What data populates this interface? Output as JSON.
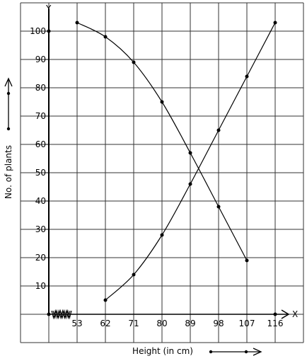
{
  "chart_data": {
    "type": "line",
    "title": "",
    "xlabel": "Height (in cm)",
    "ylabel": "No. of plants",
    "x_axis_letter": "X",
    "y_axis_letter": "Y",
    "x": [
      53,
      62,
      71,
      80,
      89,
      98,
      107,
      116
    ],
    "x_tick_labels": [
      "53",
      "62",
      "71",
      "80",
      "89",
      "98",
      "107",
      "116"
    ],
    "y_ticks": [
      10,
      20,
      30,
      40,
      50,
      60,
      70,
      80,
      90,
      100
    ],
    "y_tick_labels": [
      "10",
      "20",
      "30",
      "40",
      "50",
      "60",
      "70",
      "80",
      "90",
      "100"
    ],
    "ylim": [
      0,
      110
    ],
    "grid": true,
    "x_axis_break": true,
    "series": [
      {
        "x": [
          53,
          62,
          71,
          80,
          89,
          98,
          107
        ],
        "values": [
          103,
          98,
          89,
          75,
          57,
          38,
          19
        ]
      },
      {
        "x": [
          62,
          71,
          80,
          89,
          98,
          107,
          116
        ],
        "values": [
          5,
          14,
          28,
          46,
          65,
          84,
          103
        ]
      }
    ]
  }
}
